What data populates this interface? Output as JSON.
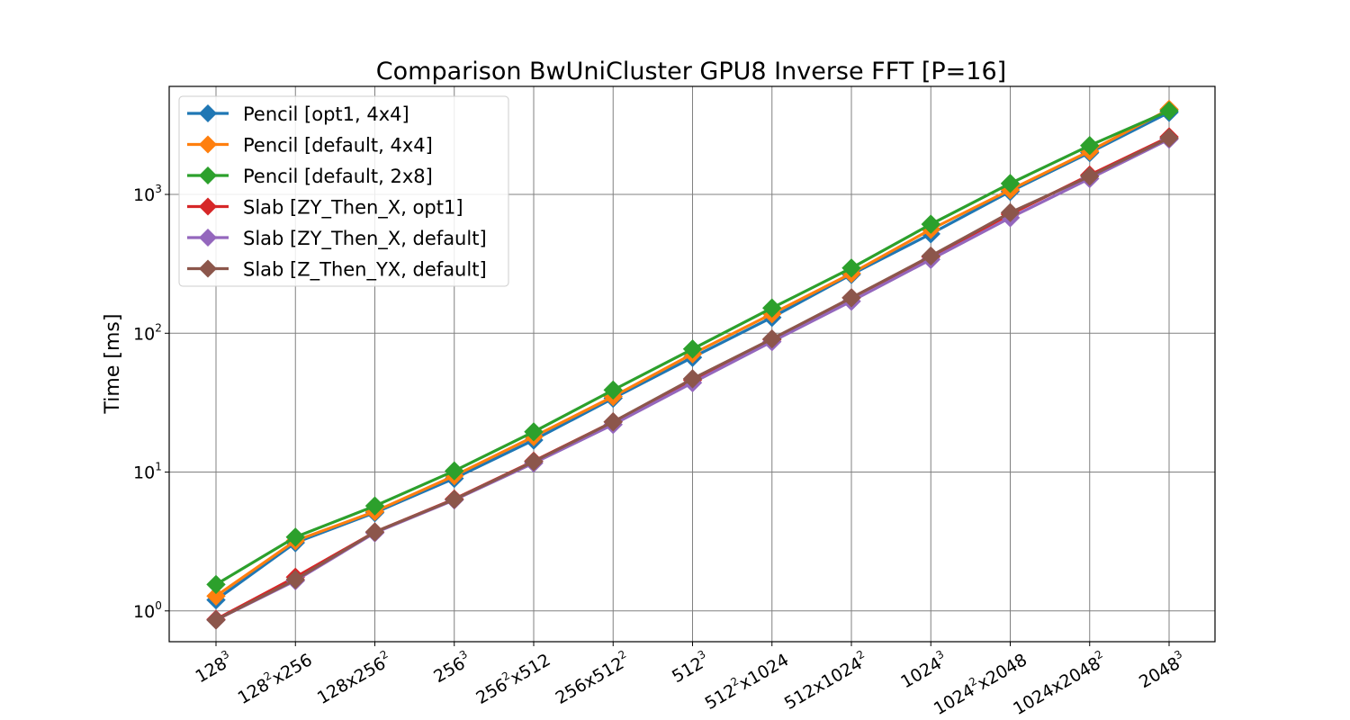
{
  "chart_data": {
    "type": "line",
    "title": "Comparison BwUniCluster GPU8 Inverse FFT [P=16]",
    "xlabel": "",
    "ylabel": "Time [ms]",
    "yscale": "log",
    "ylim": [
      0.6,
      6000
    ],
    "grid": true,
    "legend_position": "top-left",
    "categories": [
      {
        "base": "128",
        "sup": "3",
        "tail": "",
        "sup2": ""
      },
      {
        "base": "128",
        "sup": "2",
        "tail": "x256",
        "sup2": ""
      },
      {
        "base": "128x256",
        "sup": "2",
        "tail": "",
        "sup2": ""
      },
      {
        "base": "256",
        "sup": "3",
        "tail": "",
        "sup2": ""
      },
      {
        "base": "256",
        "sup": "2",
        "tail": "x512",
        "sup2": ""
      },
      {
        "base": "256x512",
        "sup": "2",
        "tail": "",
        "sup2": ""
      },
      {
        "base": "512",
        "sup": "3",
        "tail": "",
        "sup2": ""
      },
      {
        "base": "512",
        "sup": "2",
        "tail": "x1024",
        "sup2": ""
      },
      {
        "base": "512x1024",
        "sup": "2",
        "tail": "",
        "sup2": ""
      },
      {
        "base": "1024",
        "sup": "3",
        "tail": "",
        "sup2": ""
      },
      {
        "base": "1024",
        "sup": "2",
        "tail": "x2048",
        "sup2": ""
      },
      {
        "base": "1024x2048",
        "sup": "2",
        "tail": "",
        "sup2": ""
      },
      {
        "base": "2048",
        "sup": "3",
        "tail": "",
        "sup2": ""
      }
    ],
    "y_ticks": [
      {
        "value": 1,
        "base": "10",
        "exp": "0"
      },
      {
        "value": 10,
        "base": "10",
        "exp": "1"
      },
      {
        "value": 100,
        "base": "10",
        "exp": "2"
      },
      {
        "value": 1000,
        "base": "10",
        "exp": "3"
      }
    ],
    "series": [
      {
        "name": "Pencil [opt1, 4x4]",
        "color": "#1f77b4",
        "values": [
          1.2,
          3.1,
          5.1,
          9.0,
          17,
          34,
          67,
          130,
          265,
          520,
          1050,
          2000,
          3900
        ]
      },
      {
        "name": "Pencil [default, 4x4]",
        "color": "#ff7f0e",
        "values": [
          1.28,
          3.2,
          5.2,
          9.4,
          18,
          35,
          71,
          138,
          270,
          560,
          1080,
          2050,
          4100
        ]
      },
      {
        "name": "Pencil [default, 2x8]",
        "color": "#2ca02c",
        "values": [
          1.55,
          3.4,
          5.7,
          10.2,
          19.5,
          39,
          77,
          152,
          295,
          610,
          1200,
          2250,
          4000
        ]
      },
      {
        "name": "Slab [ZY_Then_X, opt1]",
        "color": "#d62728",
        "values": [
          0.87,
          1.75,
          3.7,
          6.4,
          12,
          23,
          46,
          90,
          180,
          355,
          720,
          1380,
          2600
        ]
      },
      {
        "name": "Slab [ZY_Then_X, default]",
        "color": "#9467bd",
        "values": [
          0.86,
          1.65,
          3.65,
          6.3,
          11.6,
          22,
          44,
          87,
          170,
          340,
          680,
          1300,
          2500
        ]
      },
      {
        "name": "Slab [Z_Then_YX, default]",
        "color": "#8c564b",
        "values": [
          0.86,
          1.68,
          3.7,
          6.35,
          11.9,
          23,
          47,
          91,
          180,
          360,
          740,
          1350,
          2550
        ]
      }
    ]
  }
}
